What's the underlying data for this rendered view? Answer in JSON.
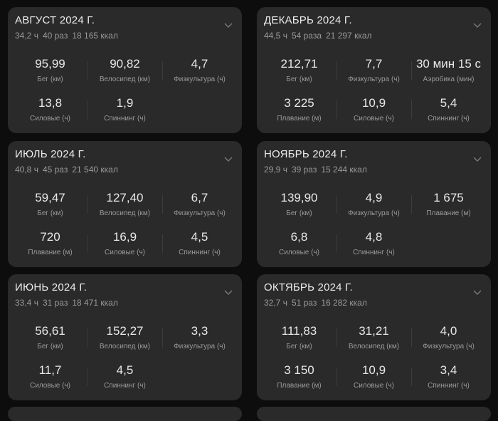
{
  "cards": [
    {
      "title": "АВГУСТ 2024 Г.",
      "hours": "34,2 ч",
      "count": "40 раз",
      "kcal": "18 165 ккал",
      "metrics": [
        {
          "value": "95,99",
          "label": "Бег (км)"
        },
        {
          "value": "90,82",
          "label": "Велосипед (км)"
        },
        {
          "value": "4,7",
          "label": "Физкультура (ч)"
        },
        {
          "value": "13,8",
          "label": "Силовые (ч)"
        },
        {
          "value": "1,9",
          "label": "Спиннинг (ч)"
        }
      ]
    },
    {
      "title": "ДЕКАБРЬ 2024 Г.",
      "hours": "44,5 ч",
      "count": "54 раза",
      "kcal": "21 297 ккал",
      "metrics": [
        {
          "value": "212,71",
          "label": "Бег (км)"
        },
        {
          "value": "7,7",
          "label": "Физкультура (ч)"
        },
        {
          "value": "30 мин 15 с",
          "label": "Аэробика (мин)"
        },
        {
          "value": "3 225",
          "label": "Плавание (м)"
        },
        {
          "value": "10,9",
          "label": "Силовые (ч)"
        },
        {
          "value": "5,4",
          "label": "Спиннинг (ч)"
        }
      ]
    },
    {
      "title": "ИЮЛЬ 2024 Г.",
      "hours": "40,8 ч",
      "count": "45 раз",
      "kcal": "21 540 ккал",
      "metrics": [
        {
          "value": "59,47",
          "label": "Бег (км)"
        },
        {
          "value": "127,40",
          "label": "Велосипед (км)"
        },
        {
          "value": "6,7",
          "label": "Физкультура (ч)"
        },
        {
          "value": "720",
          "label": "Плавание (м)"
        },
        {
          "value": "16,9",
          "label": "Силовые (ч)"
        },
        {
          "value": "4,5",
          "label": "Спиннинг (ч)"
        }
      ]
    },
    {
      "title": "НОЯБРЬ 2024 Г.",
      "hours": "29,9 ч",
      "count": "39 раз",
      "kcal": "15 244 ккал",
      "metrics": [
        {
          "value": "139,90",
          "label": "Бег (км)"
        },
        {
          "value": "4,9",
          "label": "Физкультура (ч)"
        },
        {
          "value": "1 675",
          "label": "Плавание (м)"
        },
        {
          "value": "6,8",
          "label": "Силовые (ч)"
        },
        {
          "value": "4,8",
          "label": "Спиннинг (ч)"
        }
      ]
    },
    {
      "title": "ИЮНЬ 2024 Г.",
      "hours": "33,4 ч",
      "count": "31 раз",
      "kcal": "18 471 ккал",
      "metrics": [
        {
          "value": "56,61",
          "label": "Бег (км)"
        },
        {
          "value": "152,27",
          "label": "Велосипед (км)"
        },
        {
          "value": "3,3",
          "label": "Физкультура (ч)"
        },
        {
          "value": "11,7",
          "label": "Силовые (ч)"
        },
        {
          "value": "4,5",
          "label": "Спиннинг (ч)"
        }
      ]
    },
    {
      "title": "ОКТЯБРЬ 2024 Г.",
      "hours": "32,7 ч",
      "count": "51 раз",
      "kcal": "16 282 ккал",
      "metrics": [
        {
          "value": "111,83",
          "label": "Бег (км)"
        },
        {
          "value": "31,21",
          "label": "Велосипед (км)"
        },
        {
          "value": "4,0",
          "label": "Физкультура (ч)"
        },
        {
          "value": "3 150",
          "label": "Плавание (м)"
        },
        {
          "value": "10,9",
          "label": "Силовые (ч)"
        },
        {
          "value": "3,4",
          "label": "Спиннинг (ч)"
        }
      ]
    }
  ]
}
